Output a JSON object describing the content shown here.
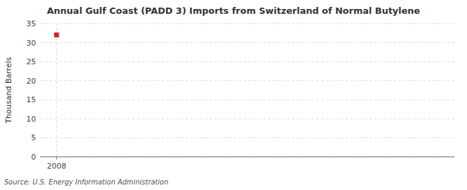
{
  "chart_data": {
    "type": "scatter",
    "title": "Annual Gulf Coast (PADD 3) Imports from Switzerland of Normal Butylene",
    "y_label": "Thousand Barrels",
    "source": "Source: U.S. Energy Information Administration",
    "x": [
      2008
    ],
    "values": [
      32
    ],
    "color": "#cc2222",
    "marker": "square",
    "xlim": [
      2007.4,
      2022.5
    ],
    "ylim": [
      0,
      35
    ],
    "xticks": [
      2008
    ],
    "yticks": [
      0,
      5,
      10,
      15,
      20,
      25,
      30,
      35
    ],
    "grid": true
  }
}
